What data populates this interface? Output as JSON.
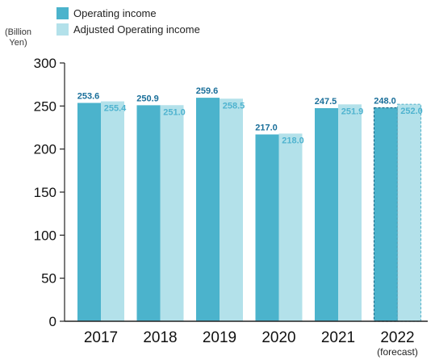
{
  "unit_label": [
    "(Billion",
    "Yen)"
  ],
  "legend": [
    {
      "label": "Operating income",
      "color": "#4bb3cc"
    },
    {
      "label": "Adjusted Operating income",
      "color": "#b3e1ea"
    }
  ],
  "colors": {
    "operating_value_text": "#1a6f9a",
    "adjusted_value_text": "#4fb3cf",
    "axis": "#222222"
  },
  "chart_data": {
    "type": "bar",
    "categories": [
      "2017",
      "2018",
      "2019",
      "2020",
      "2021",
      "2022"
    ],
    "category_sublabels": [
      "",
      "",
      "",
      "",
      "",
      "(forecast)"
    ],
    "forecast_category": "2022",
    "series": [
      {
        "name": "Operating income",
        "values": [
          253.6,
          250.9,
          259.6,
          217.0,
          247.5,
          248.0
        ]
      },
      {
        "name": "Adjusted Operating income",
        "values": [
          255.4,
          251.0,
          258.5,
          218.0,
          251.9,
          252.0
        ]
      }
    ],
    "value_labels": [
      [
        "253.6",
        "250.9",
        "259.6",
        "217.0",
        "247.5",
        "248.0"
      ],
      [
        "255.4",
        "251.0",
        "258.5",
        "218.0",
        "251.9",
        "252.0"
      ]
    ],
    "y_ticks": [
      "0",
      "50",
      "100",
      "150",
      "200",
      "250",
      "300"
    ],
    "ylim": [
      0,
      300
    ],
    "grid": false,
    "legend_position": "top-left"
  }
}
